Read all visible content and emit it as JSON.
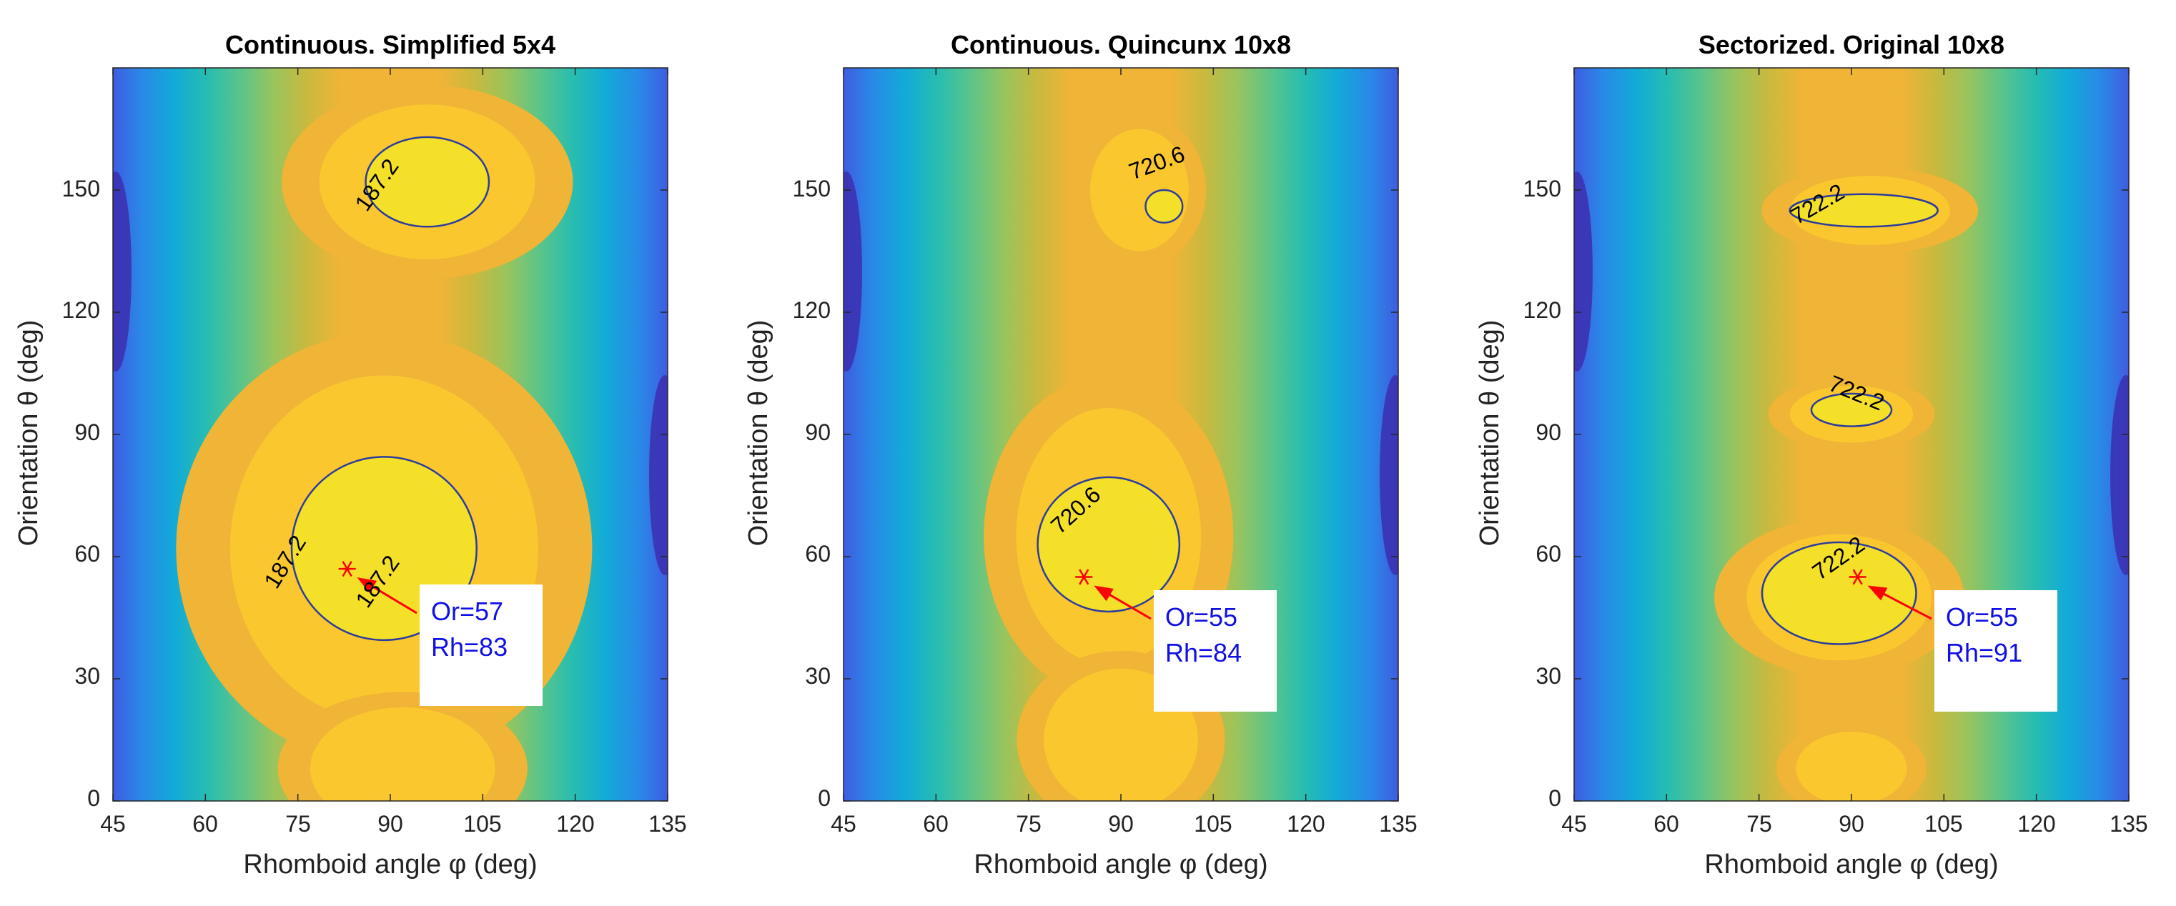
{
  "chart_data": [
    {
      "type": "heatmap",
      "title": "Continuous. Simplified 5x4",
      "xlabel": "Rhomboid angle φ (deg)",
      "ylabel": "Orientation θ (deg)",
      "xlim": [
        45,
        135
      ],
      "ylim": [
        0,
        180
      ],
      "xticks": [
        "45",
        "60",
        "75",
        "90",
        "105",
        "120",
        "135"
      ],
      "yticks": [
        "0",
        "30",
        "60",
        "90",
        "120",
        "150"
      ],
      "contour_level": "187.2",
      "contour_labels": [
        "187.2",
        "187.2",
        "187.2"
      ],
      "regions": [
        {
          "level": 7,
          "x": [
            96,
            80,
            115
          ],
          "y": [
            152,
            130,
            168
          ]
        },
        {
          "level": 7,
          "x": [
            89,
            65,
            115
          ],
          "y": [
            62,
            20,
            105
          ]
        },
        {
          "level": 6,
          "x": [
            92,
            78,
            108
          ],
          "y": [
            8,
            0,
            30
          ]
        }
      ],
      "maxima_contours": [
        {
          "x": [
            96,
            86,
            106
          ],
          "y": [
            152,
            141,
            163
          ]
        },
        {
          "x": [
            89,
            71,
            101
          ],
          "y": [
            62,
            39,
            84
          ]
        }
      ],
      "optimum": {
        "x": 83,
        "y": 57
      },
      "annotation_lines": [
        "Or=57",
        "Rh=83"
      ]
    },
    {
      "type": "heatmap",
      "title": "Continuous. Quincunx 10x8",
      "xlabel": "Rhomboid angle φ (deg)",
      "ylabel": "Orientation θ (deg)",
      "xlim": [
        45,
        135
      ],
      "ylim": [
        0,
        180
      ],
      "xticks": [
        "45",
        "60",
        "75",
        "90",
        "105",
        "120",
        "135"
      ],
      "yticks": [
        "0",
        "30",
        "60",
        "90",
        "120",
        "150"
      ],
      "contour_level": "720.6",
      "contour_labels": [
        "720.6",
        "720.6"
      ],
      "regions": [
        {
          "level": 7,
          "x": [
            93,
            85,
            101
          ],
          "y": [
            150,
            133,
            163
          ]
        },
        {
          "level": 7,
          "x": [
            88,
            74,
            104
          ],
          "y": [
            65,
            35,
            98
          ]
        },
        {
          "level": 6,
          "x": [
            90,
            78,
            103
          ],
          "y": [
            15,
            0,
            35
          ]
        }
      ],
      "maxima_contours": [
        {
          "x": [
            97,
            94,
            100
          ],
          "y": [
            146,
            142,
            150
          ]
        },
        {
          "x": [
            88,
            76,
            99
          ],
          "y": [
            63,
            46,
            79
          ]
        }
      ],
      "optimum": {
        "x": 84,
        "y": 55
      },
      "annotation_lines": [
        "Or=55",
        "Rh=84"
      ]
    },
    {
      "type": "heatmap",
      "title": "Sectorized. Original 10x8",
      "xlabel": "Rhomboid angle φ (deg)",
      "ylabel": "Orientation θ (deg)",
      "xlim": [
        45,
        135
      ],
      "ylim": [
        0,
        180
      ],
      "xticks": [
        "45",
        "60",
        "75",
        "90",
        "105",
        "120",
        "135"
      ],
      "yticks": [
        "0",
        "30",
        "60",
        "90",
        "120",
        "150"
      ],
      "contour_level": "722.2",
      "contour_labels": [
        "722.2",
        "722.2",
        "722.2"
      ],
      "regions": [
        {
          "level": 7,
          "x": [
            93,
            80,
            106
          ],
          "y": [
            145,
            135,
            152
          ]
        },
        {
          "level": 7,
          "x": [
            90,
            80,
            100
          ],
          "y": [
            95,
            88,
            102
          ]
        },
        {
          "level": 7,
          "x": [
            88,
            74,
            104
          ],
          "y": [
            50,
            35,
            66
          ]
        },
        {
          "level": 7,
          "x": [
            90,
            82,
            100
          ],
          "y": [
            8,
            2,
            20
          ]
        }
      ],
      "maxima_contours": [
        {
          "x": [
            92,
            80,
            104
          ],
          "y": [
            145,
            141,
            149
          ]
        },
        {
          "x": [
            90,
            83,
            96
          ],
          "y": [
            96,
            92,
            100
          ]
        },
        {
          "x": [
            88,
            75,
            100
          ],
          "y": [
            51,
            38,
            63
          ]
        }
      ],
      "optimum": {
        "x": 91,
        "y": 55
      },
      "annotation_lines": [
        "Or=55",
        "Rh=91"
      ]
    }
  ],
  "colors": {
    "scale": [
      "#3b2fb0",
      "#3f5ce0",
      "#2a88e8",
      "#12aad8",
      "#27bdb1",
      "#5bc48a",
      "#99c45d",
      "#c9b93e",
      "#f0b437",
      "#fac72f",
      "#f4e028"
    ],
    "contour": "#2c3c9c",
    "optimum_marker": "#ff0000",
    "arrow": "#ff0000",
    "annotation_text": "#1010e6",
    "annotation_box": "#ffffff"
  }
}
